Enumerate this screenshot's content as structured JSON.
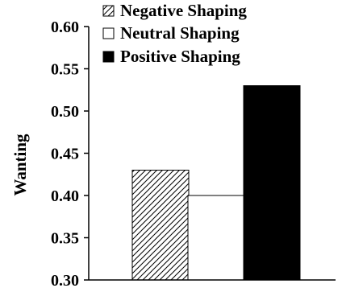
{
  "chart_data": {
    "type": "bar",
    "title": "",
    "xlabel": "",
    "ylabel": "Wanting",
    "ylim": [
      0.3,
      0.6
    ],
    "yticks": [
      "0.30",
      "0.35",
      "0.40",
      "0.45",
      "0.50",
      "0.55",
      "0.60"
    ],
    "grid": false,
    "legend_position": "top-left",
    "series": [
      {
        "name": "Negative Shaping",
        "value": 0.43,
        "fill": "hatch",
        "color": "#000000"
      },
      {
        "name": "Neutral Shaping",
        "value": 0.4,
        "fill": "#ffffff",
        "color": "#000000"
      },
      {
        "name": "Positive Shaping",
        "value": 0.53,
        "fill": "#000000",
        "color": "#000000"
      }
    ]
  }
}
